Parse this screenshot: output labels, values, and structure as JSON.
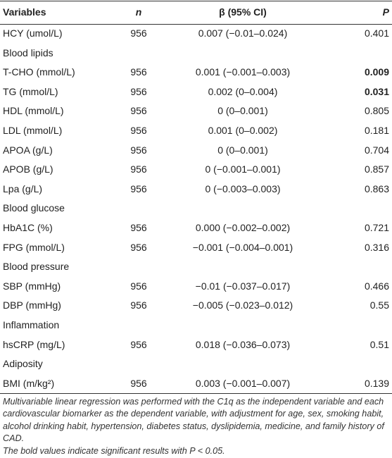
{
  "table": {
    "header": [
      "Variables",
      "n",
      "β (95% CI)",
      "P"
    ],
    "rows": [
      [
        "HCY (umol/L)",
        "956",
        "0.007 (−0.01–0.024)",
        "0.401"
      ],
      [
        "Blood lipids"
      ],
      [
        "T-CHO (mmol/L)",
        "956",
        "0.001 (−0.001–0.003)",
        "0.009"
      ],
      [
        "TG (mmol/L)",
        "956",
        "0.002 (0–0.004)",
        "0.031"
      ],
      [
        "HDL (mmol/L)",
        "956",
        "0 (0–0.001)",
        "0.805"
      ],
      [
        "LDL (mmol/L)",
        "956",
        "0.001 (0–0.002)",
        "0.181"
      ],
      [
        "APOA (g/L)",
        "956",
        "0 (0–0.001)",
        "0.704"
      ],
      [
        "APOB (g/L)",
        "956",
        "0 (−0.001–0.001)",
        "0.857"
      ],
      [
        "Lpa (g/L)",
        "956",
        "0 (−0.003–0.003)",
        "0.863"
      ],
      [
        "Blood glucose"
      ],
      [
        "HbA1C (%)",
        "956",
        "0.000 (−0.002–0.002)",
        "0.721"
      ],
      [
        "FPG (mmol/L)",
        "956",
        "−0.001 (−0.004–0.001)",
        "0.316"
      ],
      [
        "Blood pressure"
      ],
      [
        "SBP (mmHg)",
        "956",
        "−0.01 (−0.037–0.017)",
        "0.466"
      ],
      [
        "DBP (mmHg)",
        "956",
        "−0.005 (−0.023–0.012)",
        "0.55"
      ],
      [
        "Inflammation"
      ],
      [
        "hsCRP (mg/L)",
        "956",
        "0.018 (−0.036–0.073)",
        "0.51"
      ],
      [
        "Adiposity"
      ],
      [
        "BMI (m/kg²)",
        "956",
        "0.003 (−0.001–0.007)",
        "0.139"
      ]
    ],
    "footnotes": [
      "Multivariable linear regression was performed with the C1q as the independent variable and each cardiovascular biomarker as the dependent variable, with adjustment for age, sex, smoking habit, alcohol drinking habit, hypertension, diabetes status, dyslipidemia, medicine, and family history of CAD.",
      "The bold values indicate significant results with P < 0.05."
    ]
  }
}
